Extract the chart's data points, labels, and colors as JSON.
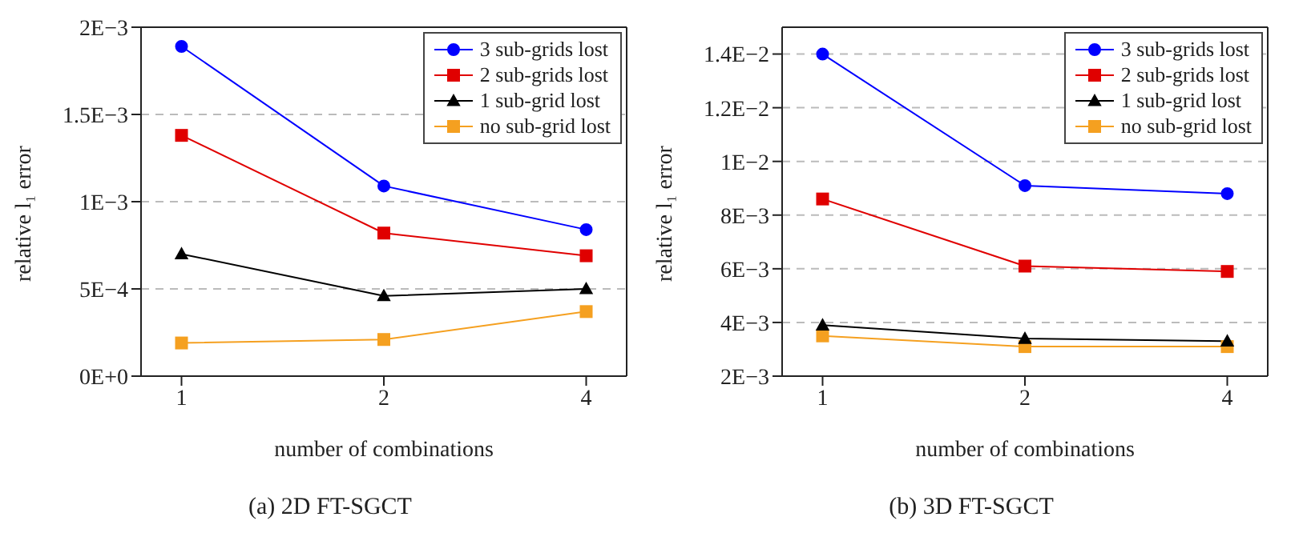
{
  "chart_data": [
    {
      "type": "line",
      "title": "(a) 2D FT-SGCT",
      "xlabel": "number of combinations",
      "ylabel": "relative l₁ error",
      "categories": [
        "1",
        "2",
        "4"
      ],
      "series": [
        {
          "name": "3 sub-grids lost",
          "color": "#0000ff",
          "marker": "circle",
          "values": [
            0.00189,
            0.00109,
            0.00084
          ]
        },
        {
          "name": "2 sub-grids lost",
          "color": "#e00000",
          "marker": "square",
          "values": [
            0.00138,
            0.00082,
            0.00069
          ]
        },
        {
          "name": "1 sub-grid lost",
          "color": "#000000",
          "marker": "triangle",
          "values": [
            0.0007,
            0.00046,
            0.0005
          ]
        },
        {
          "name": "no sub-grid lost",
          "color": "#f5a020",
          "marker": "square",
          "values": [
            0.00019,
            0.00021,
            0.00037
          ]
        }
      ],
      "ylim": [
        0,
        0.002
      ],
      "yticks": [
        {
          "value": 0,
          "label": "0E+0"
        },
        {
          "value": 0.0005,
          "label": "5E−4"
        },
        {
          "value": 0.001,
          "label": "1E−3"
        },
        {
          "value": 0.0015,
          "label": "1.5E−3"
        },
        {
          "value": 0.002,
          "label": "2E−3"
        }
      ],
      "grid": "y",
      "legend": "top right",
      "line_style": "solid"
    },
    {
      "type": "line",
      "title": "(b) 3D FT-SGCT",
      "xlabel": "number of combinations",
      "ylabel": "relative l₁ error",
      "categories": [
        "1",
        "2",
        "4"
      ],
      "series": [
        {
          "name": "3 sub-grids lost",
          "color": "#0000ff",
          "marker": "circle",
          "values": [
            0.014,
            0.0091,
            0.0088
          ]
        },
        {
          "name": "2 sub-grids lost",
          "color": "#e00000",
          "marker": "square",
          "values": [
            0.0086,
            0.0061,
            0.0059
          ]
        },
        {
          "name": "1 sub-grid lost",
          "color": "#000000",
          "marker": "triangle",
          "values": [
            0.0039,
            0.0034,
            0.0033
          ]
        },
        {
          "name": "no sub-grid lost",
          "color": "#f5a020",
          "marker": "square",
          "values": [
            0.0035,
            0.0031,
            0.0031
          ]
        }
      ],
      "ylim": [
        0.002,
        0.015
      ],
      "yticks": [
        {
          "value": 0.002,
          "label": "2E−3"
        },
        {
          "value": 0.004,
          "label": "4E−3"
        },
        {
          "value": 0.006,
          "label": "6E−3"
        },
        {
          "value": 0.008,
          "label": "8E−3"
        },
        {
          "value": 0.01,
          "label": "1E−2"
        },
        {
          "value": 0.012,
          "label": "1.2E−2"
        },
        {
          "value": 0.014,
          "label": "1.4E−2"
        }
      ],
      "grid": "y",
      "legend": "top right",
      "line_style": "solid"
    }
  ]
}
